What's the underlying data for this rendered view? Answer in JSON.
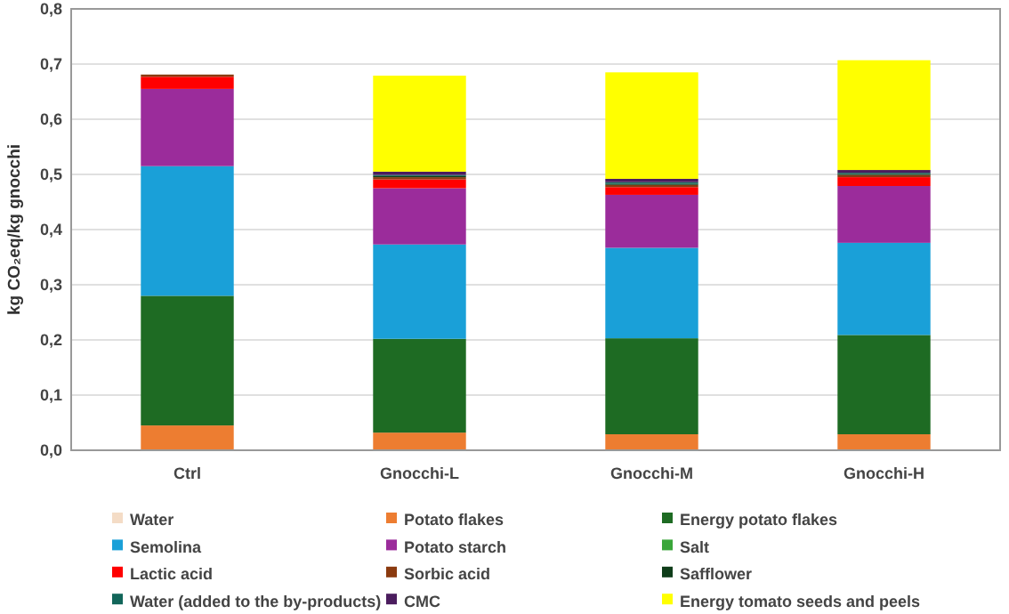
{
  "chart_data": {
    "type": "bar",
    "stacked": true,
    "ylabel": "kg CO₂eq/kg gnocchi",
    "categories": [
      "Ctrl",
      "Gnocchi-L",
      "Gnocchi-M",
      "Gnocchi-H"
    ],
    "ylim": [
      0,
      0.8
    ],
    "yticks": [
      {
        "value": 0,
        "label": "0,0"
      },
      {
        "value": 0.1,
        "label": "0,1"
      },
      {
        "value": 0.2,
        "label": "0,2"
      },
      {
        "value": 0.3,
        "label": "0,3"
      },
      {
        "value": 0.4,
        "label": "0,4"
      },
      {
        "value": 0.5,
        "label": "0,5"
      },
      {
        "value": 0.6,
        "label": "0,6"
      },
      {
        "value": 0.7,
        "label": "0,7"
      },
      {
        "value": 0.8,
        "label": "0,8"
      }
    ],
    "grid": "y",
    "legend": "bottom",
    "series": [
      {
        "name": "Water",
        "color": "#f4dcc6",
        "values": [
          0,
          0,
          0,
          0
        ]
      },
      {
        "name": "Potato flakes",
        "color": "#ed7d31",
        "values": [
          0.045,
          0.032,
          0.029,
          0.029
        ]
      },
      {
        "name": "Energy potato flakes",
        "color": "#1e6b23",
        "values": [
          0.235,
          0.17,
          0.174,
          0.18
        ]
      },
      {
        "name": "Semolina",
        "color": "#1aa0d8",
        "values": [
          0.235,
          0.171,
          0.164,
          0.167
        ]
      },
      {
        "name": "Potato starch",
        "color": "#9b2c9b",
        "values": [
          0.14,
          0.102,
          0.096,
          0.103
        ]
      },
      {
        "name": "Salt",
        "color": "#3aa63a",
        "values": [
          0,
          0,
          0,
          0
        ]
      },
      {
        "name": "Lactic acid",
        "color": "#ff0000",
        "values": [
          0.022,
          0.016,
          0.014,
          0.016
        ]
      },
      {
        "name": "Sorbic acid",
        "color": "#8b3a0f",
        "values": [
          0.004,
          0.004,
          0.004,
          0.004
        ]
      },
      {
        "name": "Safflower",
        "color": "#0f3d1a",
        "values": [
          0,
          0.002,
          0.002,
          0.002
        ]
      },
      {
        "name": "Water (added to the by-products)",
        "color": "#12665a",
        "values": [
          0,
          0.002,
          0.003,
          0.002
        ]
      },
      {
        "name": "CMC",
        "color": "#4b1d5e",
        "values": [
          0,
          0.006,
          0.006,
          0.005
        ]
      },
      {
        "name": "Energy tomato seeds and peels",
        "color": "#ffff00",
        "values": [
          0,
          0.174,
          0.193,
          0.199
        ]
      }
    ]
  }
}
